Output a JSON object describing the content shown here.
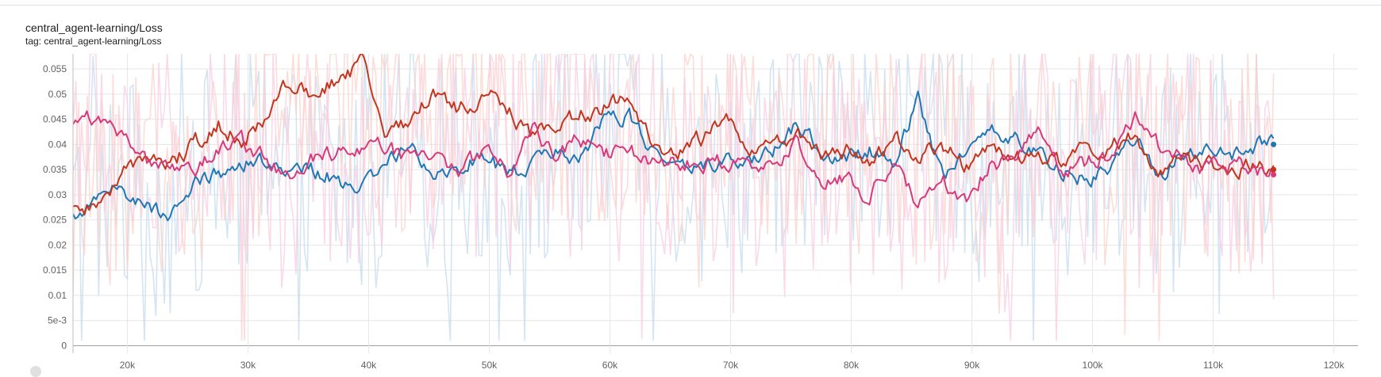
{
  "card": {
    "title": "central_agent-learning/Loss",
    "tag": "tag: central_agent-learning/Loss"
  },
  "chart_data": {
    "type": "line",
    "xlim": [
      15500,
      122000
    ],
    "ylim": [
      -0.0015,
      0.058
    ],
    "grid": true,
    "x_ticks": [
      {
        "value": 20000,
        "label": "20k"
      },
      {
        "value": 30000,
        "label": "30k"
      },
      {
        "value": 40000,
        "label": "40k"
      },
      {
        "value": 50000,
        "label": "50k"
      },
      {
        "value": 60000,
        "label": "60k"
      },
      {
        "value": 70000,
        "label": "70k"
      },
      {
        "value": 80000,
        "label": "80k"
      },
      {
        "value": 90000,
        "label": "90k"
      },
      {
        "value": 100000,
        "label": "100k"
      },
      {
        "value": 110000,
        "label": "110k"
      },
      {
        "value": 120000,
        "label": "120k"
      }
    ],
    "y_ticks": [
      {
        "value": 0,
        "label": "0"
      },
      {
        "value": 0.005,
        "label": "5e-3"
      },
      {
        "value": 0.01,
        "label": "0.01"
      },
      {
        "value": 0.015,
        "label": "0.015"
      },
      {
        "value": 0.02,
        "label": "0.02"
      },
      {
        "value": 0.025,
        "label": "0.025"
      },
      {
        "value": 0.03,
        "label": "0.03"
      },
      {
        "value": 0.035,
        "label": "0.035"
      },
      {
        "value": 0.04,
        "label": "0.04"
      },
      {
        "value": 0.045,
        "label": "0.045"
      },
      {
        "value": 0.05,
        "label": "0.05"
      },
      {
        "value": 0.055,
        "label": "0.055"
      }
    ],
    "series": [
      {
        "color": "#1f77b4",
        "raw_color": "#c6dbef",
        "x": [
          15500,
          17500,
          19500,
          21500,
          23500,
          25500,
          27500,
          29500,
          31500,
          33500,
          35500,
          37500,
          39500,
          41500,
          43500,
          45500,
          47500,
          49500,
          51500,
          53500,
          55500,
          57500,
          59500,
          61500,
          63500,
          65500,
          67500,
          69500,
          71500,
          73500,
          75500,
          77500,
          79500,
          81500,
          83500,
          85500,
          87500,
          89500,
          91500,
          93500,
          95500,
          97500,
          99500,
          101500,
          103500,
          105500,
          107500,
          109500,
          111500,
          113500,
          115000
        ],
        "values": [
          0.025,
          0.029,
          0.031,
          0.028,
          0.026,
          0.032,
          0.034,
          0.036,
          0.037,
          0.034,
          0.035,
          0.033,
          0.031,
          0.036,
          0.041,
          0.034,
          0.036,
          0.038,
          0.034,
          0.036,
          0.038,
          0.037,
          0.044,
          0.046,
          0.038,
          0.036,
          0.035,
          0.037,
          0.036,
          0.038,
          0.044,
          0.039,
          0.037,
          0.039,
          0.036,
          0.049,
          0.034,
          0.038,
          0.044,
          0.041,
          0.038,
          0.035,
          0.033,
          0.036,
          0.041,
          0.034,
          0.038,
          0.039,
          0.038,
          0.04,
          0.04
        ]
      },
      {
        "color": "#c2361f",
        "raw_color": "#fbd2c9",
        "x": [
          15500,
          17500,
          19500,
          21500,
          23500,
          25500,
          27500,
          29500,
          31500,
          33500,
          35500,
          37500,
          39500,
          41500,
          43500,
          45500,
          47500,
          49500,
          51500,
          53500,
          55500,
          57500,
          59500,
          61500,
          63500,
          65500,
          67500,
          69500,
          71500,
          73500,
          75500,
          77500,
          79500,
          81500,
          83500,
          85500,
          87500,
          89500,
          91500,
          93500,
          95500,
          97500,
          99500,
          101500,
          103500,
          105500,
          107500,
          109500,
          111500,
          113500,
          115000
        ],
        "values": [
          0.029,
          0.027,
          0.034,
          0.038,
          0.036,
          0.04,
          0.044,
          0.041,
          0.045,
          0.053,
          0.05,
          0.053,
          0.056,
          0.041,
          0.045,
          0.05,
          0.047,
          0.05,
          0.047,
          0.041,
          0.044,
          0.046,
          0.047,
          0.05,
          0.04,
          0.039,
          0.041,
          0.045,
          0.039,
          0.04,
          0.042,
          0.038,
          0.039,
          0.037,
          0.041,
          0.038,
          0.04,
          0.036,
          0.039,
          0.037,
          0.038,
          0.036,
          0.039,
          0.04,
          0.042,
          0.034,
          0.037,
          0.036,
          0.034,
          0.036,
          0.035
        ]
      },
      {
        "color": "#d63a7a",
        "raw_color": "#f8cde0",
        "x": [
          15500,
          17500,
          19500,
          21500,
          23500,
          25500,
          27500,
          29500,
          31500,
          33500,
          35500,
          37500,
          39500,
          41500,
          43500,
          45500,
          47500,
          49500,
          51500,
          53500,
          55500,
          57500,
          59500,
          61500,
          63500,
          65500,
          67500,
          69500,
          71500,
          73500,
          75500,
          77500,
          79500,
          81500,
          83500,
          85500,
          87500,
          89500,
          91500,
          93500,
          95500,
          97500,
          99500,
          101500,
          103500,
          105500,
          107500,
          109500,
          111500,
          113500,
          115000
        ],
        "values": [
          0.045,
          0.045,
          0.043,
          0.037,
          0.034,
          0.035,
          0.038,
          0.04,
          0.037,
          0.033,
          0.037,
          0.038,
          0.038,
          0.04,
          0.036,
          0.038,
          0.034,
          0.039,
          0.035,
          0.043,
          0.038,
          0.041,
          0.038,
          0.039,
          0.036,
          0.037,
          0.036,
          0.037,
          0.035,
          0.037,
          0.04,
          0.034,
          0.033,
          0.03,
          0.036,
          0.029,
          0.033,
          0.029,
          0.036,
          0.037,
          0.043,
          0.035,
          0.036,
          0.038,
          0.046,
          0.04,
          0.037,
          0.035,
          0.036,
          0.035,
          0.034
        ]
      }
    ]
  }
}
